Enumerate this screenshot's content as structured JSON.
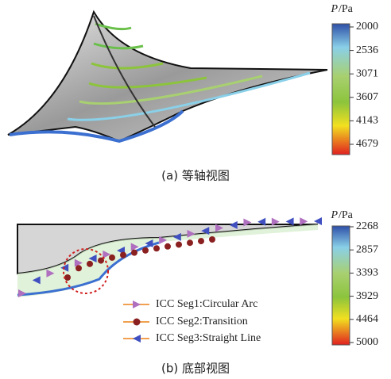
{
  "panel_a": {
    "caption": "(a) 等轴视图",
    "colorbar": {
      "symbol": "P",
      "unit": "/Pa",
      "ticks": [
        "2000",
        "2536",
        "3071",
        "3607",
        "4143",
        "4679"
      ]
    }
  },
  "panel_b": {
    "caption": "(b) 底部视图",
    "colorbar": {
      "symbol": "P",
      "unit": "/Pa",
      "ticks": [
        "2268",
        "2857",
        "3393",
        "3929",
        "4464",
        "5000"
      ]
    },
    "legend": [
      "ICC Seg1:Circular Arc",
      "ICC Seg2:Transition",
      "ICC Seg3:Straight Line"
    ]
  }
}
